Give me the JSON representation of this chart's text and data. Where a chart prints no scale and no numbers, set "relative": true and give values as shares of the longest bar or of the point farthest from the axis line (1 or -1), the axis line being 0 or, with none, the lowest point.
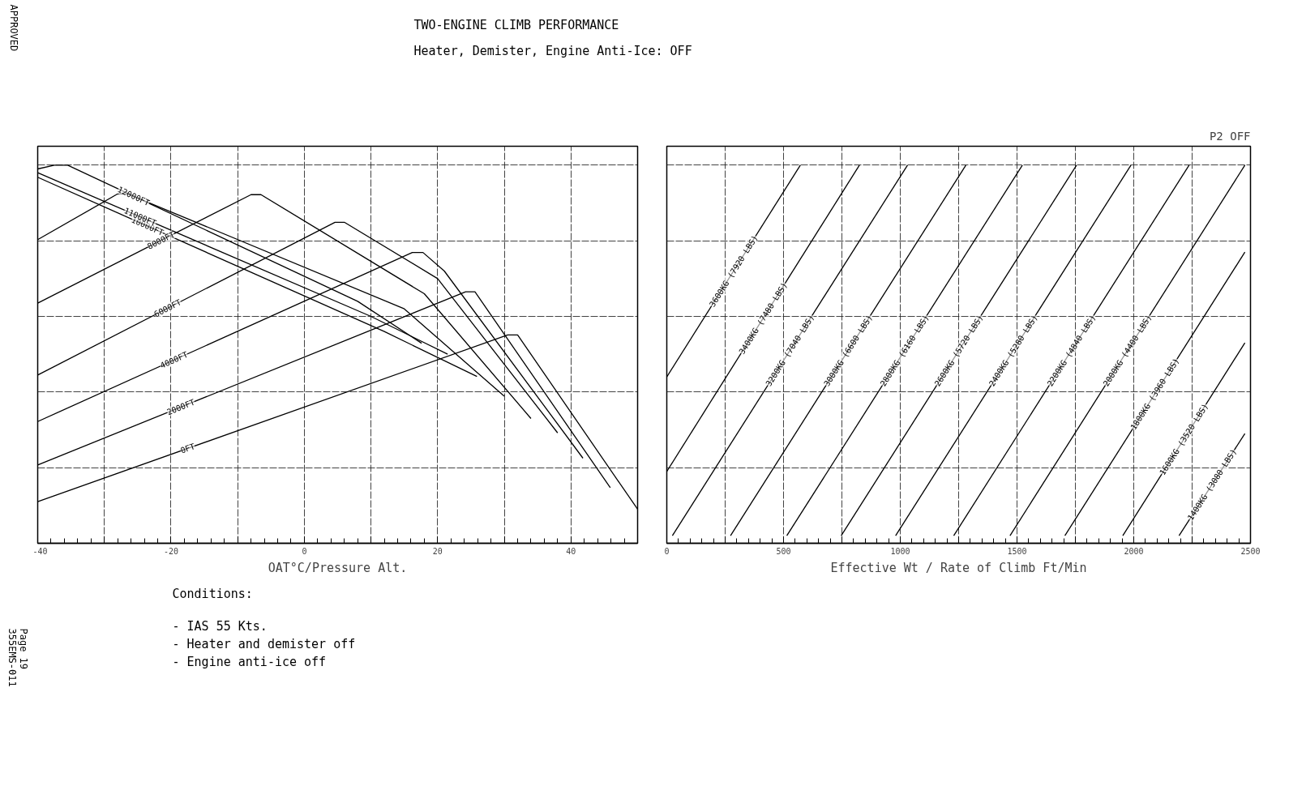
{
  "chart_data": [
    {
      "type": "line",
      "title": "TWO-ENGINE CLIMB PERFORMANCE",
      "subtitle": "Heater, Demister, Engine Anti-Ice: OFF",
      "xlabel": "OAT°C/Pressure Alt.",
      "relative": true,
      "xlim": [
        -40,
        50
      ],
      "xticks": [
        -40,
        {
          "value": -30,
          "label": null
        },
        -20,
        {
          "value": -10,
          "label": null
        },
        0,
        {
          "value": 10,
          "label": null
        },
        20,
        {
          "value": 30,
          "label": null
        },
        40,
        {
          "value": 50,
          "label": null
        }
      ],
      "grid": true,
      "annotations": [
        "Conditions:",
        "- IAS 55 Kts.",
        "- Heater and demister off",
        "- Engine anti-ice off"
      ],
      "series": [
        {
          "name": "0FT",
          "color": "#000000",
          "x": [
            -40,
            30.5,
            32,
            50
          ],
          "values": [
            0.11,
            0.551,
            0.551,
            0.09
          ]
        },
        {
          "name": "2000FT",
          "color": "#000000",
          "x": [
            -40,
            24.2,
            25.6,
            45.9
          ],
          "values": [
            0.207,
            0.665,
            0.665,
            0.147
          ]
        },
        {
          "name": "4000FT",
          "color": "#000000",
          "x": [
            -40,
            16.2,
            17.8,
            21,
            41.8
          ],
          "values": [
            0.322,
            0.769,
            0.769,
            0.72,
            0.225
          ]
        },
        {
          "name": "6000FT",
          "color": "#000000",
          "x": [
            -40,
            4.6,
            6,
            20,
            38
          ],
          "values": [
            0.445,
            0.849,
            0.849,
            0.7,
            0.292
          ]
        },
        {
          "name": "8000FT",
          "color": "#000000",
          "x": [
            -40,
            -8,
            -6.5,
            18,
            34
          ],
          "values": [
            0.635,
            0.922,
            0.922,
            0.66,
            0.33
          ]
        },
        {
          "color": "#000000",
          "x": [
            -40,
            -28,
            -26.5,
            15,
            30
          ],
          "values": [
            0.803,
            0.924,
            0.924,
            0.62,
            0.389
          ]
        },
        {
          "name": "10000FT",
          "color": "#000000",
          "x": [
            -40,
            12,
            25.9
          ],
          "values": [
            0.968,
            0.56,
            0.441
          ]
        },
        {
          "name": "11000FT",
          "color": "#000000",
          "x": [
            -40,
            10,
            21.5
          ],
          "values": [
            0.98,
            0.6,
            0.5
          ]
        },
        {
          "name": "12000FT",
          "color": "#000000",
          "x": [
            -40,
            -37.5,
            -35.5,
            8,
            17.6
          ],
          "values": [
            0.99,
            1.0,
            1.0,
            0.64,
            0.529
          ]
        }
      ]
    },
    {
      "type": "line",
      "subtitle": "P2 OFF",
      "xlabel": "Effective Wt / Rate of Climb Ft/Min",
      "relative": true,
      "xlim": [
        0,
        2500
      ],
      "xticks": [
        0,
        {
          "value": 250,
          "label": null
        },
        500,
        {
          "value": 750,
          "label": null
        },
        1000,
        {
          "value": 1250,
          "label": null
        },
        1500,
        {
          "value": 1750,
          "label": null
        },
        2000,
        {
          "value": 2250,
          "label": null
        },
        2500
      ],
      "grid": true,
      "series": [
        {
          "name": "3600KG (7920 LBS)",
          "color": "#000000",
          "x": [
            0,
            572
          ],
          "values": [
            0.44,
            1.0
          ]
        },
        {
          "name": "3400KG (7480 LBS)",
          "color": "#000000",
          "x": [
            0,
            825
          ],
          "values": [
            0.19,
            1.0
          ]
        },
        {
          "name": "3200KG (7040 LBS)",
          "color": "#000000",
          "x": [
            24,
            1031
          ],
          "values": [
            0.02,
            1.0
          ]
        },
        {
          "name": "3000KG (6600 LBS)",
          "color": "#000000",
          "x": [
            273,
            1281
          ],
          "values": [
            0.02,
            1.0
          ]
        },
        {
          "name": "2800KG (6160 LBS)",
          "color": "#000000",
          "x": [
            514,
            1523
          ],
          "values": [
            0.02,
            1.0
          ]
        },
        {
          "name": "2600KG (5720 LBS)",
          "color": "#000000",
          "x": [
            747,
            1755
          ],
          "values": [
            0.02,
            1.0
          ]
        },
        {
          "name": "2400KG (5280 LBS)",
          "color": "#000000",
          "x": [
            980,
            1988
          ],
          "values": [
            0.02,
            1.0
          ]
        },
        {
          "name": "2200KG (4840 LBS)",
          "color": "#000000",
          "x": [
            1229,
            2237
          ],
          "values": [
            0.02,
            1.0
          ]
        },
        {
          "name": "2000KG (4400 LBS)",
          "color": "#000000",
          "x": [
            1470,
            2476
          ],
          "values": [
            0.02,
            1.0
          ]
        },
        {
          "name": "1800KG (3960 LBS)",
          "color": "#000000",
          "x": [
            1705,
            2476
          ],
          "values": [
            0.02,
            0.77
          ]
        },
        {
          "name": "1600KG (3520 LBS)",
          "color": "#000000",
          "x": [
            1953,
            2476
          ],
          "values": [
            0.02,
            0.53
          ]
        },
        {
          "name": "1400KG (3080 LBS)",
          "color": "#000000",
          "x": [
            2194,
            2476
          ],
          "values": [
            0.02,
            0.29
          ]
        }
      ]
    },
    {
      "type": "other",
      "annotations": [
        "APPROVED",
        "Page 19",
        "355EMS-011"
      ]
    }
  ]
}
